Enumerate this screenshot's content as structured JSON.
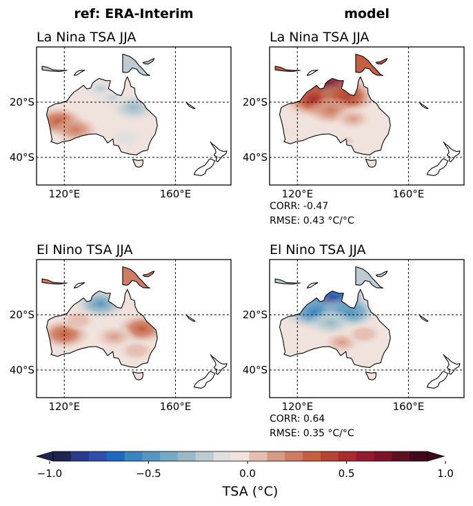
{
  "column_titles": [
    "ref: ERA-Interim",
    "model"
  ],
  "chart_data": {
    "type": "heatmap",
    "variable": "TSA",
    "colorbar": {
      "label": "TSA ( $^\\circ$C)",
      "label_display": "TSA (°C)",
      "range": [
        -1.0,
        1.0
      ],
      "ticks": [
        -1.0,
        -0.5,
        0.0,
        0.5,
        1.0
      ],
      "tick_labels": [
        "−1.0",
        "−0.5",
        "0.0",
        "0.5",
        "1.0"
      ],
      "levels": 21,
      "colors": [
        "#1e2350",
        "#283a8a",
        "#2e4fb0",
        "#1f68c0",
        "#3a84c0",
        "#5597c0",
        "#74aac6",
        "#9ab9c8",
        "#bcccd2",
        "#e0e0e0",
        "#f0e2dc",
        "#e4beb0",
        "#d89a86",
        "#ce7c62",
        "#c4603f",
        "#b74432",
        "#a82c2d",
        "#941a2e",
        "#7c1328",
        "#5f1020",
        "#40081a"
      ],
      "extend": "both"
    },
    "map": {
      "lon_range": [
        110,
        180
      ],
      "lat_range": [
        -50,
        0
      ],
      "x_ticks": [
        120,
        160
      ],
      "x_tick_labels": [
        "120°E",
        "160°E"
      ],
      "y_ticks": [
        -20,
        -40
      ],
      "y_tick_labels": [
        "20°S",
        "40°S"
      ],
      "grid": "dashed"
    },
    "panels": [
      {
        "id": "ref-lanina",
        "title": "La Nina TSA JJA",
        "column": "ref: ERA-Interim",
        "anomaly_pattern": [
          {
            "lon": 118,
            "lat": -27,
            "value": 0.35
          },
          {
            "lon": 124,
            "lat": -30,
            "value": 0.25
          },
          {
            "lon": 145,
            "lat": -22,
            "value": -0.3
          },
          {
            "lon": 137,
            "lat": -18,
            "value": -0.15
          },
          {
            "lon": 133,
            "lat": -15,
            "value": -0.2
          },
          {
            "lon": 142,
            "lat": -33,
            "value": -0.1
          }
        ]
      },
      {
        "id": "model-lanina",
        "title": "La Nina TSA JJA",
        "column": "model",
        "stats": {
          "corr_label": "CORR: -0.47",
          "rmse_label": "RMSE: 0.43 °C/°C"
        },
        "anomaly_pattern": [
          {
            "lon": 131,
            "lat": -15,
            "value": 0.9
          },
          {
            "lon": 126,
            "lat": -19,
            "value": 0.6
          },
          {
            "lon": 138,
            "lat": -18,
            "value": 0.5
          },
          {
            "lon": 132,
            "lat": -23,
            "value": 0.3
          },
          {
            "lon": 140,
            "lat": -26,
            "value": 0.15
          },
          {
            "lon": 138,
            "lat": -34,
            "value": 0.05
          }
        ]
      },
      {
        "id": "ref-elnino",
        "title": "El Nino TSA JJA",
        "column": "ref: ERA-Interim",
        "anomaly_pattern": [
          {
            "lon": 133,
            "lat": -16,
            "value": -0.45
          },
          {
            "lon": 120,
            "lat": -27,
            "value": 0.35
          },
          {
            "lon": 148,
            "lat": -25,
            "value": 0.35
          },
          {
            "lon": 138,
            "lat": -28,
            "value": 0.2
          },
          {
            "lon": 146,
            "lat": -33,
            "value": 0.1
          },
          {
            "lon": 125,
            "lat": -22,
            "value": 0.1
          }
        ]
      },
      {
        "id": "model-elnino",
        "title": "El Nino TSA JJA",
        "column": "model",
        "stats": {
          "corr_label": "CORR: 0.64",
          "rmse_label": "RMSE: 0.35 °C/°C"
        },
        "anomaly_pattern": [
          {
            "lon": 132,
            "lat": -15,
            "value": -0.9
          },
          {
            "lon": 126,
            "lat": -19,
            "value": -0.6
          },
          {
            "lon": 139,
            "lat": -19,
            "value": -0.5
          },
          {
            "lon": 132,
            "lat": -23,
            "value": -0.25
          },
          {
            "lon": 136,
            "lat": -30,
            "value": 0.15
          },
          {
            "lon": 144,
            "lat": -27,
            "value": 0.1
          }
        ]
      }
    ]
  }
}
